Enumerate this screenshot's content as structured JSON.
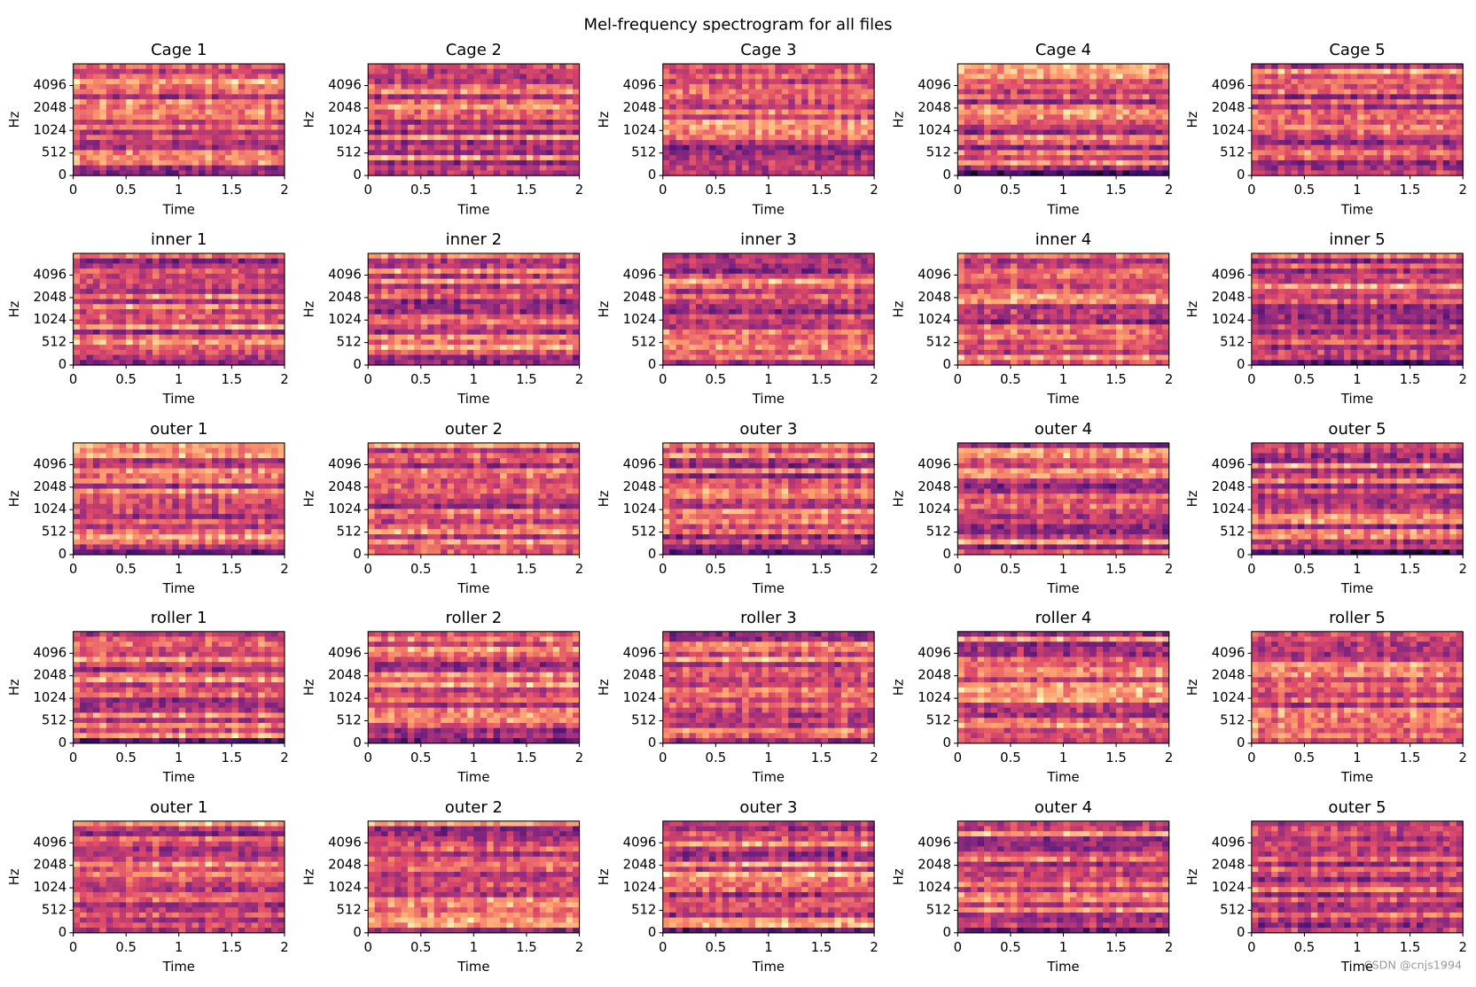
{
  "title": "Mel-frequency spectrogram for all files",
  "watermark": "CSDN @cnjs1994",
  "chart_data": [
    {
      "type": "spectrogram",
      "title": "Cage 1",
      "xlabel": "Time",
      "ylabel": "Hz",
      "xlim": [
        0,
        2
      ],
      "xticks": [
        0,
        0.5,
        1,
        1.5,
        2
      ],
      "ylim": [
        0,
        8000
      ],
      "yticks": [
        0,
        512,
        1024,
        2048,
        4096
      ],
      "yscale": "symlog",
      "linthresh": 1024,
      "colormap": "magma"
    },
    {
      "type": "spectrogram",
      "title": "Cage 2",
      "xlabel": "Time",
      "ylabel": "Hz",
      "xlim": [
        0,
        2
      ],
      "xticks": [
        0,
        0.5,
        1,
        1.5,
        2
      ],
      "ylim": [
        0,
        8000
      ],
      "yticks": [
        0,
        512,
        1024,
        2048,
        4096
      ],
      "yscale": "symlog",
      "linthresh": 1024,
      "colormap": "magma"
    },
    {
      "type": "spectrogram",
      "title": "Cage 3",
      "xlabel": "Time",
      "ylabel": "Hz",
      "xlim": [
        0,
        2
      ],
      "xticks": [
        0,
        0.5,
        1,
        1.5,
        2
      ],
      "ylim": [
        0,
        8000
      ],
      "yticks": [
        0,
        512,
        1024,
        2048,
        4096
      ],
      "yscale": "symlog",
      "linthresh": 1024,
      "colormap": "magma"
    },
    {
      "type": "spectrogram",
      "title": "Cage 4",
      "xlabel": "Time",
      "ylabel": "Hz",
      "xlim": [
        0,
        2
      ],
      "xticks": [
        0,
        0.5,
        1,
        1.5,
        2
      ],
      "ylim": [
        0,
        8000
      ],
      "yticks": [
        0,
        512,
        1024,
        2048,
        4096
      ],
      "yscale": "symlog",
      "linthresh": 1024,
      "colormap": "magma"
    },
    {
      "type": "spectrogram",
      "title": "Cage 5",
      "xlabel": "Time",
      "ylabel": "Hz",
      "xlim": [
        0,
        2
      ],
      "xticks": [
        0,
        0.5,
        1,
        1.5,
        2
      ],
      "ylim": [
        0,
        8000
      ],
      "yticks": [
        0,
        512,
        1024,
        2048,
        4096
      ],
      "yscale": "symlog",
      "linthresh": 1024,
      "colormap": "magma"
    },
    {
      "type": "spectrogram",
      "title": "inner 1",
      "xlabel": "Time",
      "ylabel": "Hz",
      "xlim": [
        0,
        2
      ],
      "xticks": [
        0,
        0.5,
        1,
        1.5,
        2
      ],
      "ylim": [
        0,
        8000
      ],
      "yticks": [
        0,
        512,
        1024,
        2048,
        4096
      ],
      "yscale": "symlog",
      "linthresh": 1024,
      "colormap": "magma"
    },
    {
      "type": "spectrogram",
      "title": "inner 2",
      "xlabel": "Time",
      "ylabel": "Hz",
      "xlim": [
        0,
        2
      ],
      "xticks": [
        0,
        0.5,
        1,
        1.5,
        2
      ],
      "ylim": [
        0,
        8000
      ],
      "yticks": [
        0,
        512,
        1024,
        2048,
        4096
      ],
      "yscale": "symlog",
      "linthresh": 1024,
      "colormap": "magma"
    },
    {
      "type": "spectrogram",
      "title": "inner 3",
      "xlabel": "Time",
      "ylabel": "Hz",
      "xlim": [
        0,
        2
      ],
      "xticks": [
        0,
        0.5,
        1,
        1.5,
        2
      ],
      "ylim": [
        0,
        8000
      ],
      "yticks": [
        0,
        512,
        1024,
        2048,
        4096
      ],
      "yscale": "symlog",
      "linthresh": 1024,
      "colormap": "magma"
    },
    {
      "type": "spectrogram",
      "title": "inner 4",
      "xlabel": "Time",
      "ylabel": "Hz",
      "xlim": [
        0,
        2
      ],
      "xticks": [
        0,
        0.5,
        1,
        1.5,
        2
      ],
      "ylim": [
        0,
        8000
      ],
      "yticks": [
        0,
        512,
        1024,
        2048,
        4096
      ],
      "yscale": "symlog",
      "linthresh": 1024,
      "colormap": "magma"
    },
    {
      "type": "spectrogram",
      "title": "inner 5",
      "xlabel": "Time",
      "ylabel": "Hz",
      "xlim": [
        0,
        2
      ],
      "xticks": [
        0,
        0.5,
        1,
        1.5,
        2
      ],
      "ylim": [
        0,
        8000
      ],
      "yticks": [
        0,
        512,
        1024,
        2048,
        4096
      ],
      "yscale": "symlog",
      "linthresh": 1024,
      "colormap": "magma"
    },
    {
      "type": "spectrogram",
      "title": "outer 1",
      "xlabel": "Time",
      "ylabel": "Hz",
      "xlim": [
        0,
        2
      ],
      "xticks": [
        0,
        0.5,
        1,
        1.5,
        2
      ],
      "ylim": [
        0,
        8000
      ],
      "yticks": [
        0,
        512,
        1024,
        2048,
        4096
      ],
      "yscale": "symlog",
      "linthresh": 1024,
      "colormap": "magma"
    },
    {
      "type": "spectrogram",
      "title": "outer 2",
      "xlabel": "Time",
      "ylabel": "Hz",
      "xlim": [
        0,
        2
      ],
      "xticks": [
        0,
        0.5,
        1,
        1.5,
        2
      ],
      "ylim": [
        0,
        8000
      ],
      "yticks": [
        0,
        512,
        1024,
        2048,
        4096
      ],
      "yscale": "symlog",
      "linthresh": 1024,
      "colormap": "magma"
    },
    {
      "type": "spectrogram",
      "title": "outer 3",
      "xlabel": "Time",
      "ylabel": "Hz",
      "xlim": [
        0,
        2
      ],
      "xticks": [
        0,
        0.5,
        1,
        1.5,
        2
      ],
      "ylim": [
        0,
        8000
      ],
      "yticks": [
        0,
        512,
        1024,
        2048,
        4096
      ],
      "yscale": "symlog",
      "linthresh": 1024,
      "colormap": "magma"
    },
    {
      "type": "spectrogram",
      "title": "outer 4",
      "xlabel": "Time",
      "ylabel": "Hz",
      "xlim": [
        0,
        2
      ],
      "xticks": [
        0,
        0.5,
        1,
        1.5,
        2
      ],
      "ylim": [
        0,
        8000
      ],
      "yticks": [
        0,
        512,
        1024,
        2048,
        4096
      ],
      "yscale": "symlog",
      "linthresh": 1024,
      "colormap": "magma"
    },
    {
      "type": "spectrogram",
      "title": "outer 5",
      "xlabel": "Time",
      "ylabel": "Hz",
      "xlim": [
        0,
        2
      ],
      "xticks": [
        0,
        0.5,
        1,
        1.5,
        2
      ],
      "ylim": [
        0,
        8000
      ],
      "yticks": [
        0,
        512,
        1024,
        2048,
        4096
      ],
      "yscale": "symlog",
      "linthresh": 1024,
      "colormap": "magma"
    },
    {
      "type": "spectrogram",
      "title": "roller 1",
      "xlabel": "Time",
      "ylabel": "Hz",
      "xlim": [
        0,
        2
      ],
      "xticks": [
        0,
        0.5,
        1,
        1.5,
        2
      ],
      "ylim": [
        0,
        8000
      ],
      "yticks": [
        0,
        512,
        1024,
        2048,
        4096
      ],
      "yscale": "symlog",
      "linthresh": 1024,
      "colormap": "magma"
    },
    {
      "type": "spectrogram",
      "title": "roller 2",
      "xlabel": "Time",
      "ylabel": "Hz",
      "xlim": [
        0,
        2
      ],
      "xticks": [
        0,
        0.5,
        1,
        1.5,
        2
      ],
      "ylim": [
        0,
        8000
      ],
      "yticks": [
        0,
        512,
        1024,
        2048,
        4096
      ],
      "yscale": "symlog",
      "linthresh": 1024,
      "colormap": "magma"
    },
    {
      "type": "spectrogram",
      "title": "roller 3",
      "xlabel": "Time",
      "ylabel": "Hz",
      "xlim": [
        0,
        2
      ],
      "xticks": [
        0,
        0.5,
        1,
        1.5,
        2
      ],
      "ylim": [
        0,
        8000
      ],
      "yticks": [
        0,
        512,
        1024,
        2048,
        4096
      ],
      "yscale": "symlog",
      "linthresh": 1024,
      "colormap": "magma"
    },
    {
      "type": "spectrogram",
      "title": "roller 4",
      "xlabel": "Time",
      "ylabel": "Hz",
      "xlim": [
        0,
        2
      ],
      "xticks": [
        0,
        0.5,
        1,
        1.5,
        2
      ],
      "ylim": [
        0,
        8000
      ],
      "yticks": [
        0,
        512,
        1024,
        2048,
        4096
      ],
      "yscale": "symlog",
      "linthresh": 1024,
      "colormap": "magma"
    },
    {
      "type": "spectrogram",
      "title": "roller 5",
      "xlabel": "Time",
      "ylabel": "Hz",
      "xlim": [
        0,
        2
      ],
      "xticks": [
        0,
        0.5,
        1,
        1.5,
        2
      ],
      "ylim": [
        0,
        8000
      ],
      "yticks": [
        0,
        512,
        1024,
        2048,
        4096
      ],
      "yscale": "symlog",
      "linthresh": 1024,
      "colormap": "magma"
    },
    {
      "type": "spectrogram",
      "title": "outer 1",
      "xlabel": "Time",
      "ylabel": "Hz",
      "xlim": [
        0,
        2
      ],
      "xticks": [
        0,
        0.5,
        1,
        1.5,
        2
      ],
      "ylim": [
        0,
        8000
      ],
      "yticks": [
        0,
        512,
        1024,
        2048,
        4096
      ],
      "yscale": "symlog",
      "linthresh": 1024,
      "colormap": "magma"
    },
    {
      "type": "spectrogram",
      "title": "outer 2",
      "xlabel": "Time",
      "ylabel": "Hz",
      "xlim": [
        0,
        2
      ],
      "xticks": [
        0,
        0.5,
        1,
        1.5,
        2
      ],
      "ylim": [
        0,
        8000
      ],
      "yticks": [
        0,
        512,
        1024,
        2048,
        4096
      ],
      "yscale": "symlog",
      "linthresh": 1024,
      "colormap": "magma"
    },
    {
      "type": "spectrogram",
      "title": "outer 3",
      "xlabel": "Time",
      "ylabel": "Hz",
      "xlim": [
        0,
        2
      ],
      "xticks": [
        0,
        0.5,
        1,
        1.5,
        2
      ],
      "ylim": [
        0,
        8000
      ],
      "yticks": [
        0,
        512,
        1024,
        2048,
        4096
      ],
      "yscale": "symlog",
      "linthresh": 1024,
      "colormap": "magma"
    },
    {
      "type": "spectrogram",
      "title": "outer 4",
      "xlabel": "Time",
      "ylabel": "Hz",
      "xlim": [
        0,
        2
      ],
      "xticks": [
        0,
        0.5,
        1,
        1.5,
        2
      ],
      "ylim": [
        0,
        8000
      ],
      "yticks": [
        0,
        512,
        1024,
        2048,
        4096
      ],
      "yscale": "symlog",
      "linthresh": 1024,
      "colormap": "magma"
    },
    {
      "type": "spectrogram",
      "title": "outer 5",
      "xlabel": "Time",
      "ylabel": "Hz",
      "xlim": [
        0,
        2
      ],
      "xticks": [
        0,
        0.5,
        1,
        1.5,
        2
      ],
      "ylim": [
        0,
        8000
      ],
      "yticks": [
        0,
        512,
        1024,
        2048,
        4096
      ],
      "yscale": "symlog",
      "linthresh": 1024,
      "colormap": "magma"
    }
  ]
}
